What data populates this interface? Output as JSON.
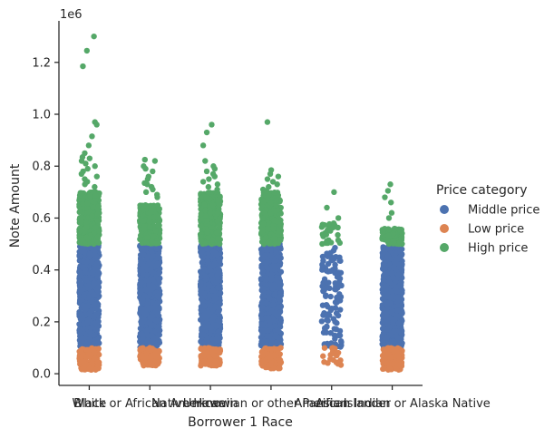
{
  "chart_data": {
    "type": "scatter",
    "subtype": "strip",
    "xlabel": "Borrower 1 Race",
    "ylabel": "Note Amount",
    "y_offset_text": "1e6",
    "y_scale": 1000000,
    "ylim": [
      -45000,
      1360000
    ],
    "yticks": [
      0,
      200000,
      400000,
      600000,
      800000,
      1000000,
      1200000
    ],
    "ytick_labels": [
      "0.0",
      "0.2",
      "0.4",
      "0.6",
      "0.8",
      "1.0",
      "1.2"
    ],
    "grid": false,
    "legend_position": "right",
    "categories": [
      "White",
      "Black or African American",
      "Unknown",
      "Native Hawaiian or other Pacific Islander",
      "Asian",
      "American Indian or Alaska Native"
    ],
    "legend": {
      "title": "Price category",
      "entries": [
        {
          "name": "Middle price",
          "color": "#4c72b0"
        },
        {
          "name": "Low price",
          "color": "#dd8452"
        },
        {
          "name": "High price",
          "color": "#55a868"
        }
      ]
    },
    "series": [
      {
        "name": "Middle price",
        "color": "#4c72b0",
        "ranges": [
          [
            100000,
            500000
          ],
          [
            100000,
            500000
          ],
          [
            100000,
            500000
          ],
          [
            100000,
            500000
          ],
          [
            100000,
            490000
          ],
          [
            100000,
            490000
          ]
        ],
        "outliers": [
          [],
          [],
          [],
          [],
          [],
          []
        ]
      },
      {
        "name": "Low price",
        "color": "#dd8452",
        "ranges": [
          [
            15000,
            100000
          ],
          [
            30000,
            100000
          ],
          [
            30000,
            100000
          ],
          [
            20000,
            100000
          ],
          [
            30000,
            100000
          ],
          [
            15000,
            100000
          ]
        ],
        "outliers": [
          [],
          [],
          [],
          [],
          [],
          []
        ]
      },
      {
        "name": "High price",
        "color": "#55a868",
        "ranges": [
          [
            500000,
            700000
          ],
          [
            500000,
            650000
          ],
          [
            500000,
            700000
          ],
          [
            500000,
            700000
          ],
          [
            500000,
            580000
          ],
          [
            500000,
            560000
          ]
        ],
        "outliers": [
          [
            1300000,
            1245000,
            1185000,
            970000,
            960000,
            915000,
            880000,
            850000,
            835000,
            830000,
            820000,
            810000,
            800000,
            790000,
            780000,
            770000,
            760000,
            750000,
            740000,
            730000,
            720000
          ],
          [
            825000,
            820000,
            800000,
            790000,
            780000,
            760000,
            750000,
            735000,
            730000,
            720000,
            710000,
            700000,
            690000,
            680000
          ],
          [
            960000,
            930000,
            880000,
            820000,
            800000,
            790000,
            780000,
            770000,
            760000,
            750000,
            740000,
            730000,
            720000,
            710000
          ],
          [
            970000,
            785000,
            770000,
            760000,
            750000,
            740000,
            730000,
            720000,
            710000,
            705000
          ],
          [
            700000,
            640000,
            600000,
            580000
          ],
          [
            730000,
            705000,
            680000,
            660000,
            620000,
            600000
          ]
        ]
      }
    ]
  }
}
